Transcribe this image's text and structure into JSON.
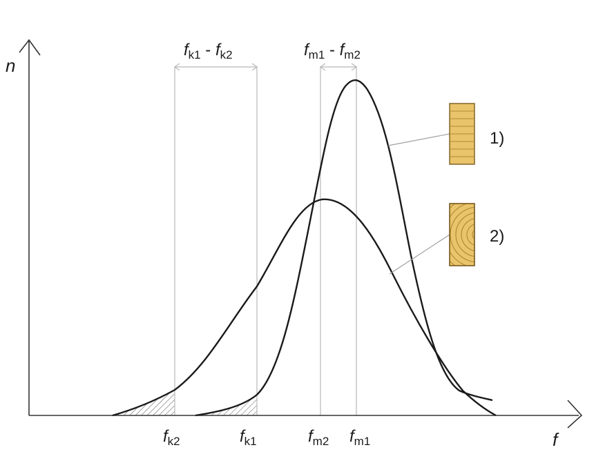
{
  "axes": {
    "y_label": "n",
    "x_label": "f"
  },
  "ticks": {
    "fk2": {
      "base": "f",
      "sub": "k2"
    },
    "fk1": {
      "base": "f",
      "sub": "k1"
    },
    "fm2": {
      "base": "f",
      "sub": "m2"
    },
    "fm1": {
      "base": "f",
      "sub": "m1"
    }
  },
  "differences": {
    "characteristic": {
      "a_base": "f",
      "a_sub": "k1",
      "sep": " - ",
      "b_base": "f",
      "b_sub": "k2"
    },
    "mean": {
      "a_base": "f",
      "a_sub": "m1",
      "sep": " - ",
      "b_base": "f",
      "b_sub": "m2"
    }
  },
  "legend": {
    "item1": "1)",
    "item2": "2)"
  },
  "colors": {
    "curve": "#1a1a1a",
    "guide": "#b8b8b8",
    "wood_fill": "#e9c46a",
    "wood_line": "#a9822e",
    "hatch": "#555555"
  }
}
